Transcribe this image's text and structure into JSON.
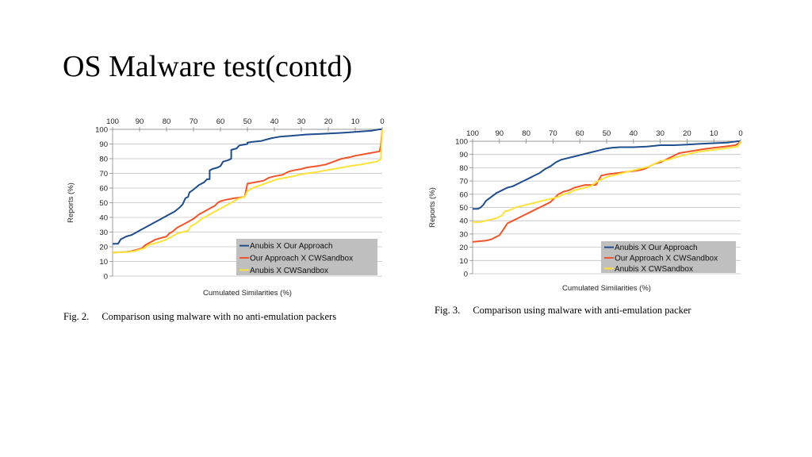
{
  "slide": {
    "title": "OS Malware test(contd)"
  },
  "colors": {
    "blue": "#1f4e8c",
    "red": "#f0542a",
    "yellow": "#fce23a",
    "grid": "#c0c0c0",
    "legend_bg": "#bfbfbf"
  },
  "chart_data": [
    {
      "type": "line",
      "caption_num": "Fig. 2.",
      "caption_text": "Comparison using malware with no anti-emulation packers",
      "xlabel": "Cumulated Similarities (%)",
      "ylabel": "Reports (%)",
      "x_ticks": [
        "100",
        "90",
        "80",
        "70",
        "60",
        "50",
        "40",
        "30",
        "20",
        "10",
        "0"
      ],
      "y_ticks": [
        "0",
        "10",
        "20",
        "30",
        "40",
        "50",
        "60",
        "70",
        "80",
        "90",
        "100"
      ],
      "xlim": [
        100,
        0
      ],
      "ylim": [
        0,
        100
      ],
      "grid": true,
      "legend_position": "bottom-right",
      "series": [
        {
          "name": "Anubis X Our Approach",
          "color": "blue",
          "points": [
            [
              100,
              22
            ],
            [
              98,
              22
            ],
            [
              97,
              25
            ],
            [
              95,
              27
            ],
            [
              93,
              28
            ],
            [
              91,
              30
            ],
            [
              89,
              32
            ],
            [
              87,
              34
            ],
            [
              85,
              36
            ],
            [
              83,
              38
            ],
            [
              81,
              40
            ],
            [
              79,
              42
            ],
            [
              77,
              44
            ],
            [
              75,
              47
            ],
            [
              74,
              49
            ],
            [
              73,
              53
            ],
            [
              72,
              54
            ],
            [
              71.5,
              57
            ],
            [
              70,
              59
            ],
            [
              68,
              62
            ],
            [
              66,
              64
            ],
            [
              65,
              66
            ],
            [
              64,
              66
            ],
            [
              64,
              72
            ],
            [
              63,
              73
            ],
            [
              61,
              74
            ],
            [
              60,
              75
            ],
            [
              59,
              78
            ],
            [
              57,
              79
            ],
            [
              56,
              80
            ],
            [
              56,
              86
            ],
            [
              54,
              87
            ],
            [
              53,
              89
            ],
            [
              50,
              90
            ],
            [
              50,
              91
            ],
            [
              48,
              91.5
            ],
            [
              45,
              92
            ],
            [
              43,
              93
            ],
            [
              41,
              94
            ],
            [
              38,
              95
            ],
            [
              34,
              95.5
            ],
            [
              31,
              96
            ],
            [
              28,
              96.5
            ],
            [
              22,
              97
            ],
            [
              16,
              97.5
            ],
            [
              12,
              98
            ],
            [
              8,
              98.5
            ],
            [
              4,
              99
            ],
            [
              1,
              100
            ],
            [
              0,
              100
            ]
          ]
        },
        {
          "name": "Our Approach X CWSandbox",
          "color": "red",
          "points": [
            [
              100,
              16
            ],
            [
              95,
              16.5
            ],
            [
              93,
              17
            ],
            [
              91,
              18
            ],
            [
              89,
              19
            ],
            [
              88,
              21
            ],
            [
              86,
              23
            ],
            [
              84,
              25
            ],
            [
              82,
              26
            ],
            [
              80,
              27
            ],
            [
              79,
              29
            ],
            [
              78,
              30
            ],
            [
              76,
              33
            ],
            [
              74,
              35
            ],
            [
              72,
              37
            ],
            [
              70,
              39
            ],
            [
              68,
              42
            ],
            [
              66,
              44
            ],
            [
              64,
              46
            ],
            [
              62,
              48
            ],
            [
              61,
              50
            ],
            [
              60,
              51
            ],
            [
              58,
              52
            ],
            [
              55,
              53
            ],
            [
              51,
              54
            ],
            [
              50,
              63
            ],
            [
              47,
              64
            ],
            [
              44,
              65
            ],
            [
              42,
              67
            ],
            [
              40,
              68
            ],
            [
              37,
              69
            ],
            [
              35,
              71
            ],
            [
              33,
              72
            ],
            [
              30,
              73
            ],
            [
              28,
              74
            ],
            [
              24,
              75
            ],
            [
              21,
              76
            ],
            [
              18,
              78
            ],
            [
              15,
              80
            ],
            [
              12,
              81
            ],
            [
              10,
              82
            ],
            [
              7,
              83
            ],
            [
              4,
              84
            ],
            [
              1,
              85
            ],
            [
              0.5,
              89
            ],
            [
              0,
              100
            ]
          ]
        },
        {
          "name": "Anubis X CWSandbox",
          "color": "yellow",
          "points": [
            [
              100,
              16
            ],
            [
              94,
              16.5
            ],
            [
              92,
              17
            ],
            [
              90,
              18
            ],
            [
              88,
              19
            ],
            [
              87,
              21
            ],
            [
              85,
              22
            ],
            [
              83,
              23
            ],
            [
              80,
              25
            ],
            [
              78,
              27
            ],
            [
              76,
              29
            ],
            [
              74,
              30
            ],
            [
              72,
              31
            ],
            [
              71,
              34
            ],
            [
              69,
              36
            ],
            [
              67,
              39
            ],
            [
              65,
              41
            ],
            [
              63,
              43
            ],
            [
              61,
              45
            ],
            [
              59,
              47
            ],
            [
              57,
              49
            ],
            [
              56,
              50
            ],
            [
              55,
              51
            ],
            [
              53,
              53
            ],
            [
              51,
              54
            ],
            [
              50,
              58
            ],
            [
              48,
              60
            ],
            [
              45,
              62
            ],
            [
              42,
              64
            ],
            [
              39,
              66
            ],
            [
              36,
              67
            ],
            [
              33,
              68
            ],
            [
              31,
              69
            ],
            [
              28,
              70
            ],
            [
              24,
              71
            ],
            [
              21,
              72
            ],
            [
              18,
              73
            ],
            [
              15,
              74
            ],
            [
              12,
              75
            ],
            [
              8,
              76
            ],
            [
              5,
              77
            ],
            [
              2,
              78
            ],
            [
              1,
              79
            ],
            [
              0.5,
              80
            ],
            [
              0,
              100
            ]
          ]
        }
      ]
    },
    {
      "type": "line",
      "caption_num": "Fig. 3.",
      "caption_text": "Comparison using malware with anti-emulation packer",
      "xlabel": "Cumulated Similarities (%)",
      "ylabel": "Reports (%)",
      "x_ticks": [
        "100",
        "90",
        "80",
        "70",
        "60",
        "50",
        "40",
        "30",
        "20",
        "10",
        "0"
      ],
      "y_ticks": [
        "0",
        "10",
        "20",
        "30",
        "40",
        "50",
        "60",
        "70",
        "80",
        "90",
        "100"
      ],
      "xlim": [
        100,
        0
      ],
      "ylim": [
        0,
        100
      ],
      "grid": true,
      "legend_position": "bottom-right",
      "series": [
        {
          "name": "Anubis X Our Approach",
          "color": "blue",
          "points": [
            [
              100,
              49
            ],
            [
              98,
              49
            ],
            [
              97,
              50
            ],
            [
              96,
              52
            ],
            [
              95,
              55
            ],
            [
              93,
              58
            ],
            [
              91,
              61
            ],
            [
              89,
              63
            ],
            [
              87,
              65
            ],
            [
              85,
              66
            ],
            [
              83,
              68
            ],
            [
              81,
              70
            ],
            [
              79,
              72
            ],
            [
              77,
              74
            ],
            [
              75,
              76
            ],
            [
              73,
              79
            ],
            [
              71,
              81
            ],
            [
              69,
              84
            ],
            [
              67,
              86
            ],
            [
              65,
              87
            ],
            [
              63,
              88
            ],
            [
              61,
              89
            ],
            [
              59,
              90
            ],
            [
              57,
              91
            ],
            [
              55,
              92
            ],
            [
              53,
              93
            ],
            [
              51,
              94
            ],
            [
              50,
              94.5
            ],
            [
              48,
              95
            ],
            [
              45,
              95.5
            ],
            [
              40,
              95.5
            ],
            [
              35,
              96
            ],
            [
              32,
              96.5
            ],
            [
              30,
              97
            ],
            [
              25,
              97
            ],
            [
              20,
              97.5
            ],
            [
              15,
              98
            ],
            [
              10,
              98.5
            ],
            [
              5,
              99
            ],
            [
              1,
              100
            ],
            [
              0,
              100
            ]
          ]
        },
        {
          "name": "Our Approach X CWSandbox",
          "color": "red",
          "points": [
            [
              100,
              24
            ],
            [
              95,
              25
            ],
            [
              93,
              26
            ],
            [
              91,
              28
            ],
            [
              90,
              29
            ],
            [
              89,
              32
            ],
            [
              88,
              35
            ],
            [
              87,
              38
            ],
            [
              85,
              40
            ],
            [
              83,
              42
            ],
            [
              81,
              44
            ],
            [
              79,
              46
            ],
            [
              77,
              48
            ],
            [
              75,
              50
            ],
            [
              73,
              52
            ],
            [
              71,
              54
            ],
            [
              70,
              56
            ],
            [
              69,
              58
            ],
            [
              68,
              60
            ],
            [
              66,
              62
            ],
            [
              64,
              63
            ],
            [
              62,
              65
            ],
            [
              60,
              66
            ],
            [
              58,
              67
            ],
            [
              54,
              67
            ],
            [
              52,
              74
            ],
            [
              50,
              75
            ],
            [
              46,
              76
            ],
            [
              42,
              77
            ],
            [
              38,
              78
            ],
            [
              36,
              79
            ],
            [
              34,
              81
            ],
            [
              32,
              83
            ],
            [
              30,
              84
            ],
            [
              28,
              86
            ],
            [
              25,
              89
            ],
            [
              23,
              91
            ],
            [
              20,
              92
            ],
            [
              17,
              93
            ],
            [
              14,
              94
            ],
            [
              10,
              95
            ],
            [
              6,
              96
            ],
            [
              2,
              97
            ],
            [
              1,
              98
            ],
            [
              0,
              100
            ]
          ]
        },
        {
          "name": "Anubis X CWSandbox",
          "color": "yellow",
          "points": [
            [
              100,
              39
            ],
            [
              97,
              39
            ],
            [
              95,
              40
            ],
            [
              93,
              41
            ],
            [
              91,
              42
            ],
            [
              89,
              44
            ],
            [
              88,
              47
            ],
            [
              86,
              48
            ],
            [
              84,
              50
            ],
            [
              82,
              51
            ],
            [
              80,
              52
            ],
            [
              78,
              53
            ],
            [
              76,
              54
            ],
            [
              74,
              55
            ],
            [
              72,
              56
            ],
            [
              70,
              57
            ],
            [
              68,
              58
            ],
            [
              66,
              60
            ],
            [
              64,
              61
            ],
            [
              62,
              63
            ],
            [
              60,
              64
            ],
            [
              58,
              65
            ],
            [
              56,
              66
            ],
            [
              54,
              69
            ],
            [
              52,
              71
            ],
            [
              50,
              73
            ],
            [
              46,
              75
            ],
            [
              42,
              77
            ],
            [
              38,
              79
            ],
            [
              34,
              81
            ],
            [
              32,
              83
            ],
            [
              30,
              85
            ],
            [
              27,
              86
            ],
            [
              24,
              88
            ],
            [
              20,
              90
            ],
            [
              16,
              92
            ],
            [
              12,
              93
            ],
            [
              8,
              94
            ],
            [
              4,
              95
            ],
            [
              1,
              96
            ],
            [
              0,
              100
            ]
          ]
        }
      ]
    }
  ]
}
